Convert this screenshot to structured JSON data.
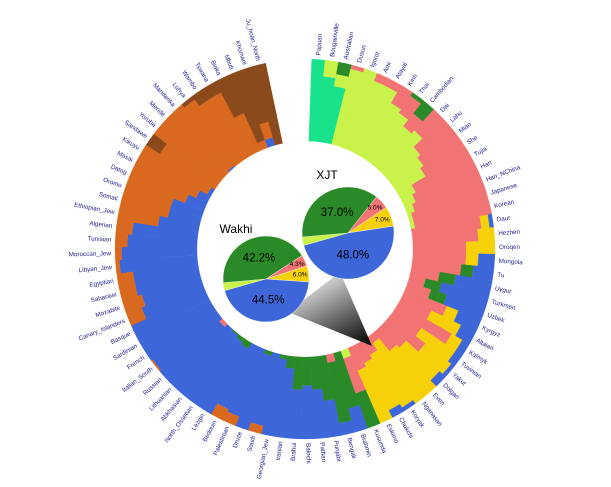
{
  "chart_data": [
    {
      "type": "radial-stacked",
      "categories": [
        "Papuan",
        "Bougainville",
        "Australian",
        "Dusun",
        "Igorot",
        "Ami",
        "Atayal",
        "Kinh",
        "Thai",
        "Cambodian",
        "Dai",
        "Lahu",
        "Miao",
        "She",
        "Tujia",
        "Han",
        "Han_NChina",
        "Japanese",
        "Korean",
        "Daur",
        "Hezhen",
        "Oroqen",
        "Mongola",
        "Tu",
        "Uygur",
        "Turkmen",
        "Uzbek",
        "Kyrgyz",
        "Altaian",
        "Kalmyk",
        "Tuvinian",
        "Yakut",
        "Dolgan",
        "Even",
        "Nganasan",
        "Koryak",
        "Chukchi",
        "Eskimo",
        "Kusunda",
        "Brahmin",
        "Bengali",
        "Punjabi",
        "Pathan",
        "Balochi",
        "Brahui",
        "Iranian",
        "Georgian_Jew",
        "Saudi",
        "Druze",
        "Palestinian",
        "Bedouin",
        "Lezgin",
        "North_Ossetian",
        "Abkhasian",
        "Lithuanian",
        "Russian",
        "Italian_South",
        "French",
        "Sardinian",
        "Basque",
        "Canary_Islanders",
        "Mozabite",
        "Saharawi",
        "Egyptian",
        "Libyan_Jew",
        "Moroccan_Jew",
        "Tunisian",
        "Algerian",
        "Ethiopian_Jew",
        "Somali",
        "Oromo",
        "Datog",
        "Masai",
        "Kikuyu",
        "Sandawe",
        "Yoruba",
        "Mende",
        "Mandenka",
        "Luhya",
        "Wambo",
        "Tswana",
        "Biaka",
        "Mbuti",
        "Khomani",
        "Ju_hoan_North"
      ],
      "series": [
        {
          "color": "#19e38a",
          "values": [
            100,
            80,
            70,
            0,
            0,
            0,
            0,
            0,
            0,
            0,
            0,
            0,
            0,
            0,
            0,
            0,
            0,
            0,
            0,
            0,
            0,
            0,
            0,
            0,
            0,
            0,
            0,
            0,
            0,
            0,
            0,
            0,
            0,
            0,
            0,
            0,
            0,
            0,
            0,
            0,
            0,
            0,
            0,
            0,
            0,
            0,
            0,
            0,
            0,
            0,
            0,
            0,
            0,
            0,
            0,
            0,
            0,
            0,
            0,
            0,
            0,
            0,
            0,
            0,
            0,
            0,
            0,
            0,
            0,
            0,
            0,
            0,
            0,
            0,
            0,
            0,
            0,
            0,
            0,
            0,
            0,
            0,
            0,
            0,
            0
          ]
        },
        {
          "color": "#c9f24a",
          "values": [
            0,
            20,
            15,
            95,
            100,
            90,
            90,
            75,
            70,
            60,
            65,
            50,
            45,
            40,
            20,
            15,
            10,
            5,
            5,
            0,
            0,
            0,
            0,
            0,
            0,
            0,
            0,
            0,
            0,
            0,
            0,
            0,
            0,
            0,
            0,
            0,
            0,
            0,
            10,
            0,
            0,
            0,
            0,
            0,
            0,
            0,
            0,
            0,
            0,
            0,
            0,
            0,
            0,
            0,
            0,
            0,
            0,
            0,
            0,
            0,
            0,
            0,
            0,
            0,
            0,
            0,
            0,
            0,
            0,
            0,
            0,
            0,
            0,
            0,
            0,
            0,
            0,
            0,
            0,
            0,
            0,
            0,
            0,
            0,
            0
          ]
        },
        {
          "color": "#f27373",
          "values": [
            0,
            0,
            0,
            5,
            0,
            10,
            10,
            25,
            25,
            20,
            35,
            50,
            55,
            60,
            80,
            85,
            90,
            95,
            95,
            85,
            80,
            65,
            65,
            60,
            35,
            20,
            30,
            55,
            40,
            75,
            40,
            55,
            35,
            30,
            10,
            20,
            25,
            30,
            45,
            0,
            10,
            0,
            0,
            0,
            0,
            0,
            0,
            0,
            0,
            0,
            0,
            0,
            0,
            0,
            0,
            5,
            0,
            0,
            0,
            0,
            0,
            0,
            0,
            0,
            0,
            0,
            0,
            0,
            0,
            0,
            0,
            0,
            0,
            0,
            0,
            0,
            0,
            0,
            0,
            0,
            0,
            0,
            0,
            0,
            0
          ]
        },
        {
          "color": "#f6d10a",
          "values": [
            0,
            0,
            0,
            0,
            0,
            0,
            0,
            0,
            0,
            0,
            0,
            0,
            0,
            0,
            0,
            0,
            0,
            0,
            0,
            10,
            20,
            35,
            15,
            0,
            0,
            0,
            0,
            15,
            40,
            15,
            50,
            40,
            55,
            70,
            90,
            75,
            65,
            70,
            0,
            0,
            0,
            0,
            0,
            0,
            0,
            0,
            0,
            0,
            0,
            0,
            0,
            0,
            0,
            0,
            0,
            0,
            0,
            0,
            0,
            0,
            0,
            0,
            0,
            0,
            0,
            0,
            0,
            0,
            0,
            0,
            0,
            0,
            0,
            0,
            0,
            0,
            0,
            0,
            0,
            0,
            0,
            0,
            0,
            0,
            0
          ]
        },
        {
          "color": "#2a8a27",
          "values": [
            0,
            0,
            15,
            0,
            0,
            0,
            0,
            0,
            5,
            20,
            0,
            0,
            0,
            0,
            0,
            0,
            0,
            0,
            0,
            0,
            0,
            0,
            0,
            15,
            20,
            20,
            20,
            0,
            0,
            0,
            0,
            0,
            0,
            0,
            0,
            0,
            0,
            0,
            45,
            70,
            75,
            55,
            40,
            35,
            40,
            15,
            5,
            0,
            5,
            0,
            0,
            8,
            5,
            2,
            0,
            0,
            0,
            0,
            0,
            0,
            0,
            0,
            0,
            0,
            0,
            0,
            0,
            0,
            0,
            0,
            0,
            0,
            0,
            0,
            0,
            0,
            0,
            0,
            0,
            0,
            0,
            0,
            0,
            0,
            0
          ]
        },
        {
          "color": "#3d66d8",
          "values": [
            0,
            0,
            0,
            0,
            0,
            0,
            0,
            0,
            0,
            0,
            0,
            0,
            0,
            0,
            0,
            0,
            0,
            0,
            0,
            5,
            0,
            0,
            20,
            25,
            45,
            60,
            50,
            30,
            20,
            10,
            10,
            5,
            10,
            0,
            0,
            5,
            10,
            0,
            0,
            30,
            15,
            45,
            60,
            65,
            60,
            85,
            95,
            90,
            95,
            88,
            85,
            92,
            95,
            98,
            100,
            95,
            98,
            100,
            100,
            100,
            80,
            75,
            80,
            80,
            95,
            92,
            85,
            80,
            50,
            40,
            40,
            25,
            15,
            5,
            0,
            0,
            0,
            2,
            0,
            0,
            0,
            0,
            0,
            10,
            0
          ]
        },
        {
          "color": "#d8691f",
          "values": [
            0,
            0,
            0,
            0,
            0,
            0,
            0,
            0,
            0,
            0,
            0,
            0,
            0,
            0,
            0,
            0,
            0,
            0,
            0,
            0,
            0,
            0,
            0,
            0,
            0,
            0,
            0,
            0,
            0,
            0,
            0,
            0,
            0,
            0,
            0,
            0,
            0,
            0,
            0,
            0,
            0,
            0,
            0,
            0,
            0,
            0,
            0,
            10,
            0,
            12,
            15,
            0,
            0,
            0,
            0,
            0,
            2,
            0,
            0,
            0,
            20,
            25,
            20,
            20,
            5,
            8,
            15,
            20,
            50,
            60,
            60,
            75,
            85,
            95,
            80,
            100,
            100,
            98,
            95,
            85,
            85,
            50,
            10,
            20,
            0
          ]
        },
        {
          "color": "#8a4a1c",
          "values": [
            0,
            0,
            0,
            0,
            0,
            0,
            0,
            0,
            0,
            0,
            0,
            0,
            0,
            0,
            0,
            0,
            0,
            0,
            0,
            0,
            0,
            0,
            0,
            0,
            0,
            0,
            0,
            0,
            0,
            0,
            0,
            0,
            0,
            0,
            0,
            0,
            0,
            0,
            0,
            0,
            0,
            0,
            0,
            0,
            0,
            0,
            0,
            0,
            0,
            0,
            0,
            0,
            0,
            0,
            0,
            0,
            0,
            0,
            0,
            0,
            0,
            0,
            0,
            0,
            0,
            0,
            0,
            0,
            0,
            0,
            0,
            0,
            0,
            0,
            20,
            0,
            0,
            0,
            5,
            15,
            15,
            50,
            90,
            70,
            100
          ]
        }
      ]
    },
    {
      "type": "pie",
      "title": "Wakhi",
      "values": [
        42.2,
        4.3,
        6.0,
        44.5
      ],
      "value_labels": [
        "42.2%",
        "4.3%",
        "6.0%",
        "44.5%"
      ],
      "colors": [
        "#2a8a27",
        "#f27373",
        "#f6d10a",
        "#3d66d8"
      ]
    },
    {
      "type": "pie",
      "title": "XJT",
      "values": [
        37.0,
        5.0,
        7.0,
        48.0
      ],
      "value_labels": [
        "37.0%",
        "5.0%",
        "7.0%",
        "48.0%"
      ],
      "colors": [
        "#2a8a27",
        "#f27373",
        "#f6d10a",
        "#3d66d8"
      ]
    }
  ]
}
